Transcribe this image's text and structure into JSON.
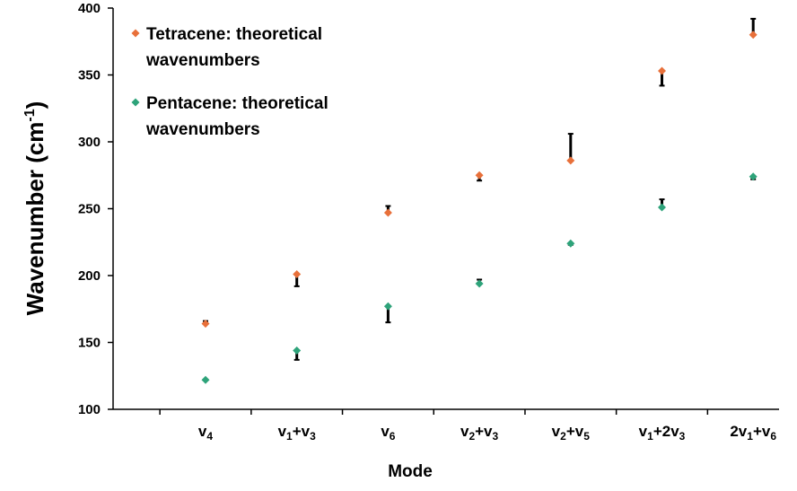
{
  "chart_data": {
    "type": "scatter",
    "x_axis": {
      "label": "Mode",
      "categories": [
        {
          "main": "v",
          "sub": "4",
          "text": "v4"
        },
        {
          "main": "v",
          "sub": "1",
          "plus": "+v",
          "sub2": "3",
          "text": "v1+v3"
        },
        {
          "main": "v",
          "sub": "6",
          "text": "v6"
        },
        {
          "main": "v",
          "sub": "2",
          "plus": "+v",
          "sub2": "3",
          "text": "v2+v3"
        },
        {
          "main": "v",
          "sub": "2",
          "plus": "+v",
          "sub2": "5",
          "text": "v2+v5"
        },
        {
          "main": "v",
          "sub": "1",
          "plus": "+2v",
          "sub2": "3",
          "text": "v1+2v3"
        },
        {
          "main": "2v",
          "sub": "1",
          "plus": "+v",
          "sub2": "6",
          "text": "2v1+v6"
        }
      ]
    },
    "y_axis": {
      "label_main": "Wavenumber (cm",
      "label_sup": "-1",
      "label_end": ")",
      "ylim": [
        100,
        400
      ],
      "ticks": [
        100,
        150,
        200,
        250,
        300,
        350,
        400
      ]
    },
    "series": [
      {
        "name_line1": "Tetracene: theoretical",
        "name_line2": "wavenumbers",
        "color": "#E8703A",
        "values": [
          164,
          201,
          247,
          275,
          286,
          353,
          380
        ]
      },
      {
        "name_line1": "Pentacene: theoretical",
        "name_line2": "wavenumbers",
        "color": "#2EA37A",
        "values": [
          122,
          144,
          177,
          194,
          224,
          251,
          274
        ]
      }
    ],
    "error_bars": [
      {
        "series": 0,
        "category": 0,
        "low": 164,
        "high": 166
      },
      {
        "series": 0,
        "category": 1,
        "low": 192,
        "high": 201
      },
      {
        "series": 0,
        "category": 2,
        "low": 247,
        "high": 252
      },
      {
        "series": 0,
        "category": 3,
        "low": 271,
        "high": 275
      },
      {
        "series": 0,
        "category": 4,
        "low": 286,
        "high": 306
      },
      {
        "series": 0,
        "category": 5,
        "low": 342,
        "high": 353
      },
      {
        "series": 0,
        "category": 6,
        "low": 380,
        "high": 392
      },
      {
        "series": 1,
        "category": 1,
        "low": 137,
        "high": 144
      },
      {
        "series": 1,
        "category": 2,
        "low": 165,
        "high": 177
      },
      {
        "series": 1,
        "category": 3,
        "low": 194,
        "high": 197
      },
      {
        "series": 1,
        "category": 4,
        "low": 223,
        "high": 224
      },
      {
        "series": 1,
        "category": 5,
        "low": 251,
        "high": 257
      },
      {
        "series": 1,
        "category": 6,
        "low": 272,
        "high": 274
      }
    ],
    "legend_position": "top-left",
    "grid": false
  }
}
